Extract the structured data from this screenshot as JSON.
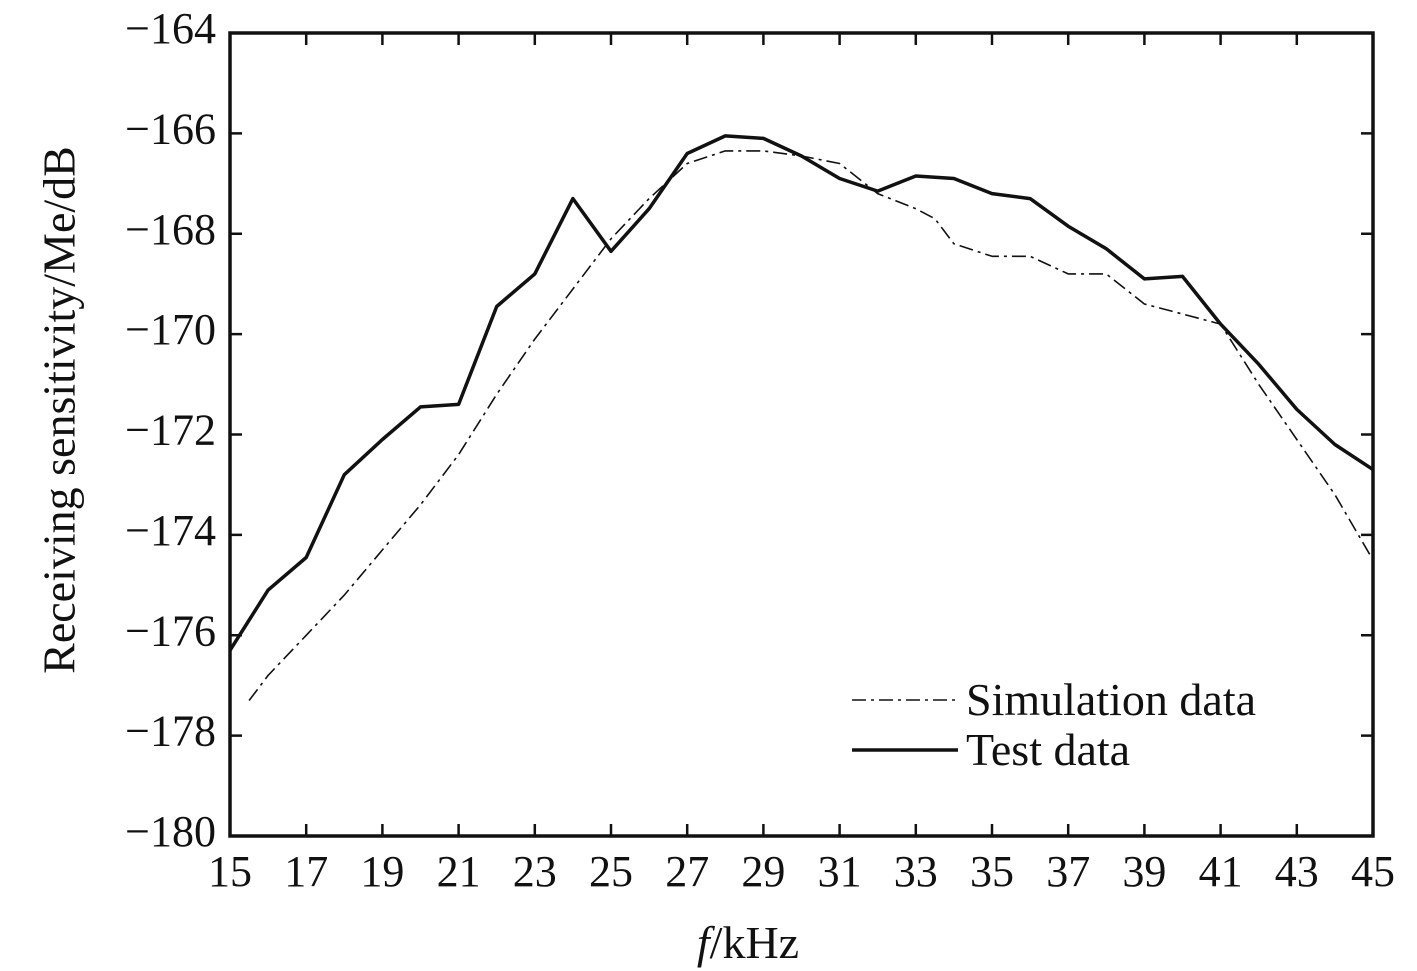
{
  "chart_data": {
    "type": "line",
    "title": "",
    "xlabel": {
      "italic": "f",
      "rest": "/kHz"
    },
    "ylabel": "Receiving sensitivity/Me/dB",
    "xlim": [
      15,
      45
    ],
    "ylim": [
      -180,
      -164
    ],
    "xticks": [
      15,
      17,
      19,
      21,
      23,
      25,
      27,
      29,
      31,
      33,
      35,
      37,
      39,
      41,
      43,
      45
    ],
    "yticks": [
      -164,
      -166,
      -168,
      -170,
      -172,
      -174,
      -176,
      -178,
      -180
    ],
    "ytick_labels": [
      "−164",
      "−166",
      "−168",
      "−170",
      "−172",
      "−174",
      "−176",
      "−178",
      "−180"
    ],
    "grid": false,
    "legend_position": "bottom-right",
    "series": [
      {
        "name": "Simulation data",
        "style": "dashdot",
        "color": "#111111",
        "x": [
          15.5,
          16,
          17,
          18,
          19,
          20,
          21,
          22,
          23,
          24,
          25,
          26,
          27,
          28,
          29,
          30,
          31,
          32,
          33,
          33.5,
          34,
          35,
          36,
          37,
          38,
          39,
          40,
          41,
          42,
          43,
          44,
          45
        ],
        "y": [
          -177.3,
          -176.8,
          -176.0,
          -175.2,
          -174.3,
          -173.4,
          -172.4,
          -171.2,
          -170.1,
          -169.1,
          -168.1,
          -167.3,
          -166.6,
          -166.35,
          -166.35,
          -166.45,
          -166.6,
          -167.2,
          -167.5,
          -167.7,
          -168.2,
          -168.45,
          -168.45,
          -168.8,
          -168.8,
          -169.4,
          -169.6,
          -169.8,
          -171.0,
          -172.1,
          -173.2,
          -174.5
        ]
      },
      {
        "name": "Test data",
        "style": "solid",
        "color": "#111111",
        "x": [
          15,
          16,
          17,
          18,
          19,
          20,
          21,
          22,
          23,
          24,
          25,
          26,
          27,
          28,
          29,
          30,
          31,
          32,
          33,
          34,
          35,
          36,
          37,
          38,
          39,
          40,
          41,
          42,
          43,
          44,
          45
        ],
        "y": [
          -176.3,
          -175.1,
          -174.45,
          -172.8,
          -172.1,
          -171.45,
          -171.4,
          -169.45,
          -168.8,
          -167.3,
          -168.35,
          -167.5,
          -166.4,
          -166.05,
          -166.1,
          -166.45,
          -166.9,
          -167.15,
          -166.85,
          -166.9,
          -167.2,
          -167.3,
          -167.85,
          -168.3,
          -168.9,
          -168.85,
          -169.8,
          -170.6,
          -171.5,
          -172.2,
          -172.7
        ]
      }
    ]
  }
}
